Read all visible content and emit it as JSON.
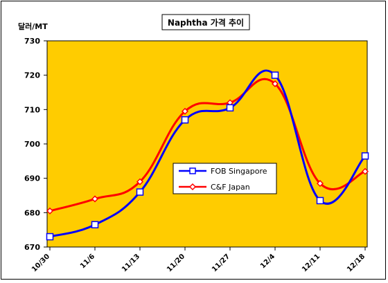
{
  "chart_data": {
    "type": "line",
    "title": "Naphtha 가격 추이",
    "ylabel": "달러/MT",
    "xlabel": "",
    "categories": [
      "10/30",
      "11/6",
      "11/13",
      "11/20",
      "11/27",
      "12/4",
      "12/11",
      "12/18"
    ],
    "ylim": [
      670,
      730
    ],
    "yticks": [
      670,
      680,
      690,
      700,
      710,
      720,
      730
    ],
    "grid": false,
    "legend_position": "center-right",
    "plot_background": "#ffcc00",
    "series": [
      {
        "name": "FOB Singapore",
        "color": "#0000ff",
        "marker": "square",
        "values": [
          673,
          676.5,
          686,
          707,
          710.5,
          720,
          683.5,
          696.5
        ]
      },
      {
        "name": "C&F Japan",
        "color": "#ff0000",
        "marker": "diamond",
        "values": [
          680.5,
          684,
          689,
          709.5,
          712,
          717.5,
          688.5,
          692
        ]
      }
    ]
  }
}
